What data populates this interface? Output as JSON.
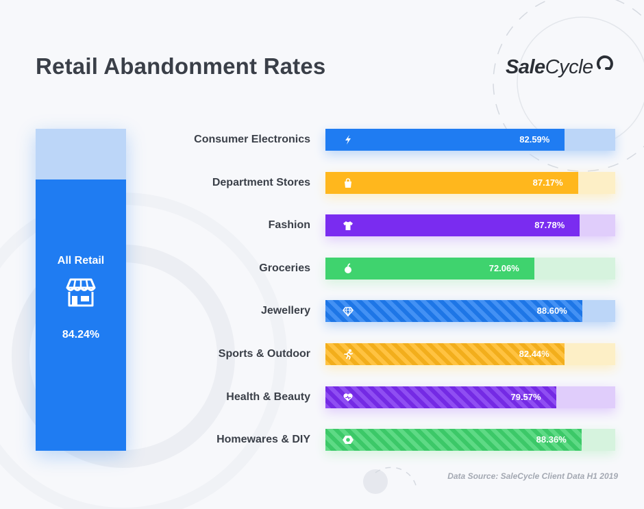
{
  "header": {
    "title": "Retail Abandonment Rates"
  },
  "logo": {
    "bold_part": "Sale",
    "light_part": "Cycle"
  },
  "overall": {
    "label": "All Retail",
    "value_text": "84.24%",
    "value": 84.24,
    "icon": "storefront-icon"
  },
  "chart_data": {
    "type": "bar",
    "orientation": "horizontal",
    "title": "Retail Abandonment Rates",
    "xlim": [
      0,
      100
    ],
    "grid": false,
    "categories": [
      "Consumer Electronics",
      "Department Stores",
      "Fashion",
      "Groceries",
      "Jewellery",
      "Sports & Outdoor",
      "Health & Beauty",
      "Homewares & DIY"
    ],
    "values": [
      82.59,
      87.17,
      87.78,
      72.06,
      88.6,
      82.44,
      79.57,
      88.36
    ],
    "value_labels": [
      "82.59%",
      "87.17%",
      "87.78%",
      "72.06%",
      "88.60%",
      "82.44%",
      "79.57%",
      "88.36%"
    ],
    "icons": [
      "lightning-icon",
      "shopping-bag-icon",
      "tshirt-icon",
      "apple-icon",
      "diamond-icon",
      "runner-icon",
      "heart-icon",
      "bolt-nut-icon"
    ],
    "colors": [
      "#1f7cf2",
      "#ffb71d",
      "#7a2cf0",
      "#3fd36e",
      "#1f7cf2",
      "#ffb71d",
      "#7a2cf0",
      "#3fd36e"
    ],
    "track_colors": [
      "#bcd6f8",
      "#fdefc6",
      "#e0cdfb",
      "#d6f3de",
      "#bcd6f8",
      "#fdefc6",
      "#e0cdfb",
      "#d6f3de"
    ],
    "striped": [
      false,
      false,
      false,
      false,
      true,
      true,
      true,
      true
    ]
  },
  "footer": {
    "source": "Data Source: SaleCycle Client Data H1 2019"
  }
}
